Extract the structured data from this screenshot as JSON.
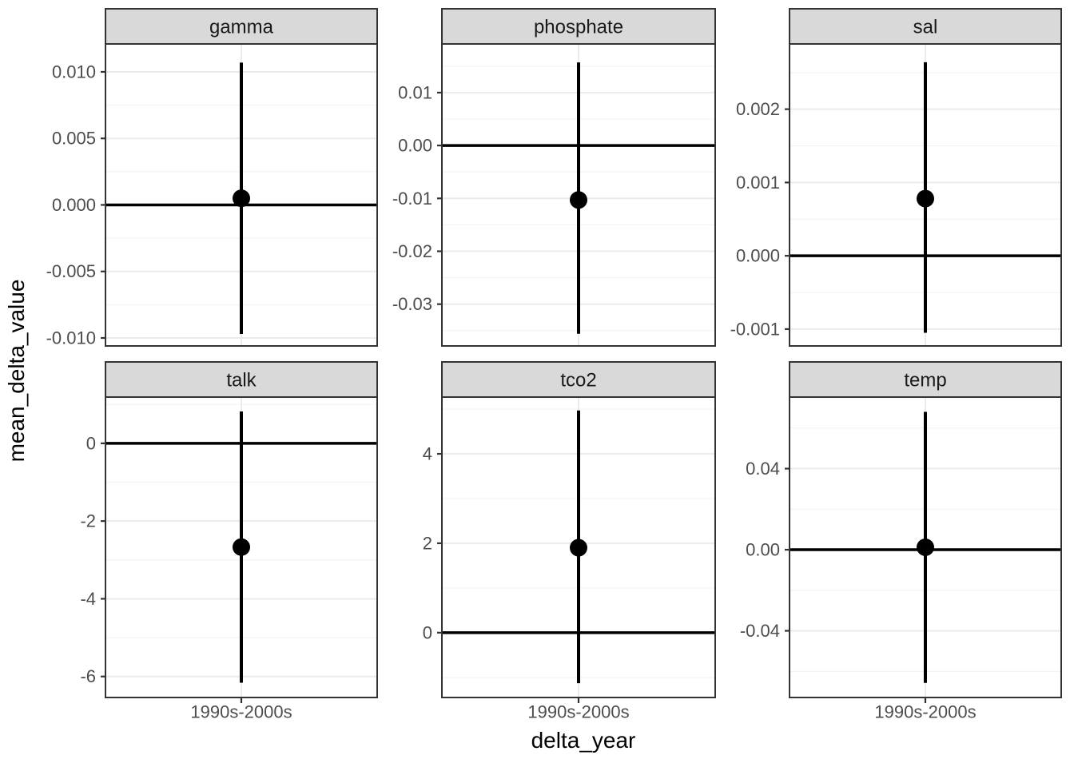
{
  "figure": {
    "y_axis_title": "mean_delta_value",
    "x_axis_title": "delta_year"
  },
  "colors": {
    "strip_bg": "#d9d9d9",
    "strip_border": "#333333",
    "strip_text": "#1a1a1a",
    "panel_bg": "#ffffff",
    "panel_border": "#333333",
    "grid_major": "#ebebeb",
    "grid_minor": "#f3f3f3",
    "tick_mark": "#333333",
    "tick_label": "#4d4d4d",
    "data_color": "#000000"
  },
  "chart_data": {
    "type": "scatter",
    "subtype": "pointrange-faceted",
    "facet_layout": {
      "rows": 2,
      "cols": 3,
      "scales": "free_y"
    },
    "xlabel": "delta_year",
    "ylabel": "mean_delta_value",
    "x_categories": [
      "1990s-2000s"
    ],
    "legend": "none",
    "grid": "on",
    "panels": [
      {
        "facet": "gamma",
        "x": "1990s-2000s",
        "mean": 0.0005,
        "ci_low": -0.0097,
        "ci_high": 0.0107,
        "hline": 0,
        "ylim": [
          -0.0106,
          0.0121
        ],
        "yticks": [
          {
            "v": 0.01,
            "label": "0.010"
          },
          {
            "v": 0.005,
            "label": "0.005"
          },
          {
            "v": 0.0,
            "label": "0.000"
          },
          {
            "v": -0.005,
            "label": "-0.005"
          },
          {
            "v": -0.01,
            "label": "-0.010"
          }
        ],
        "yminor": [
          0.0075,
          0.0025,
          -0.0025,
          -0.0075
        ]
      },
      {
        "facet": "phosphate",
        "x": "1990s-2000s",
        "mean": -0.0103,
        "ci_low": -0.0356,
        "ci_high": 0.0157,
        "hline": 0,
        "ylim": [
          -0.0379,
          0.0192
        ],
        "yticks": [
          {
            "v": 0.01,
            "label": "0.01"
          },
          {
            "v": 0.0,
            "label": "0.00"
          },
          {
            "v": -0.01,
            "label": "-0.01"
          },
          {
            "v": -0.02,
            "label": "-0.02"
          },
          {
            "v": -0.03,
            "label": "-0.03"
          }
        ],
        "yminor": [
          0.015,
          0.005,
          -0.005,
          -0.015,
          -0.025,
          -0.035
        ]
      },
      {
        "facet": "sal",
        "x": "1990s-2000s",
        "mean": 0.00078,
        "ci_low": -0.00105,
        "ci_high": 0.00264,
        "hline": 0,
        "ylim": [
          -0.00123,
          0.00289
        ],
        "yticks": [
          {
            "v": 0.002,
            "label": "0.002"
          },
          {
            "v": 0.001,
            "label": "0.001"
          },
          {
            "v": 0.0,
            "label": "0.000"
          },
          {
            "v": -0.001,
            "label": "-0.001"
          }
        ],
        "yminor": [
          0.0025,
          0.0015,
          0.0005,
          -0.0005
        ]
      },
      {
        "facet": "talk",
        "x": "1990s-2000s",
        "mean": -2.67,
        "ci_low": -6.16,
        "ci_high": 0.82,
        "hline": 0,
        "ylim": [
          -6.54,
          1.19
        ],
        "yticks": [
          {
            "v": 0,
            "label": "0"
          },
          {
            "v": -2,
            "label": "-2"
          },
          {
            "v": -4,
            "label": "-4"
          },
          {
            "v": -6,
            "label": "-6"
          }
        ],
        "yminor": [
          1,
          -1,
          -3,
          -5
        ]
      },
      {
        "facet": "tco2",
        "x": "1990s-2000s",
        "mean": 1.9,
        "ci_low": -1.13,
        "ci_high": 4.97,
        "hline": 0,
        "ylim": [
          -1.45,
          5.27
        ],
        "yticks": [
          {
            "v": 4,
            "label": "4"
          },
          {
            "v": 2,
            "label": "2"
          },
          {
            "v": 0,
            "label": "0"
          }
        ],
        "yminor": [
          5,
          3,
          1,
          -1
        ]
      },
      {
        "facet": "temp",
        "x": "1990s-2000s",
        "mean": 0.0012,
        "ci_low": -0.0657,
        "ci_high": 0.068,
        "hline": 0,
        "ylim": [
          -0.0729,
          0.0753
        ],
        "yticks": [
          {
            "v": 0.04,
            "label": "0.04"
          },
          {
            "v": 0.0,
            "label": "0.00"
          },
          {
            "v": -0.04,
            "label": "-0.04"
          }
        ],
        "yminor": [
          0.06,
          0.02,
          -0.02,
          -0.06
        ]
      }
    ]
  }
}
